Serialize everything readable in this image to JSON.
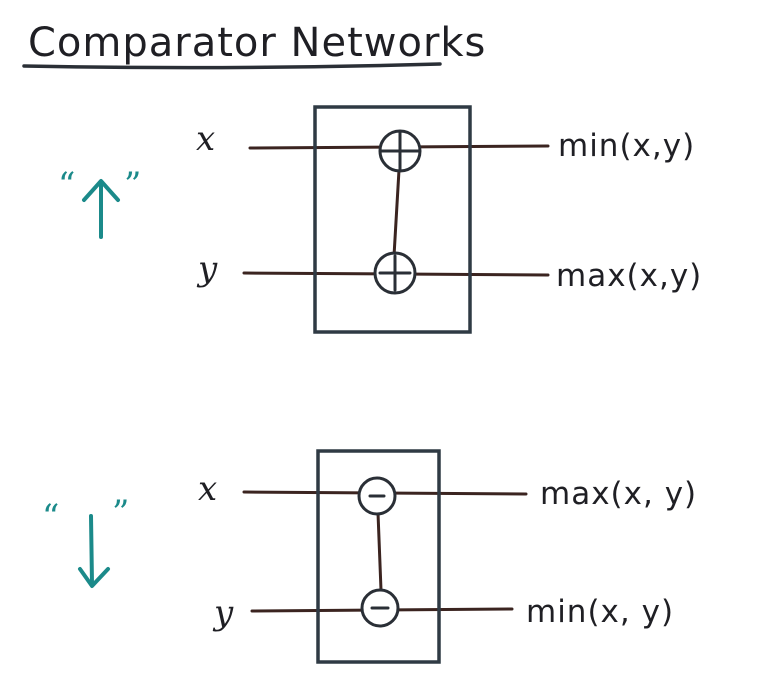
{
  "title": "Comparator Networks",
  "colors": {
    "ink": "#1f1f24",
    "wire": "#3b2420",
    "box": "#2f3a44",
    "teal": "#1b8a8a"
  },
  "up_network": {
    "label_open_quote": "“",
    "label_close_quote": "”",
    "arrow_icon": "arrow-up-icon",
    "input_top": "x",
    "input_bottom": "y",
    "output_top": "min(x,y)",
    "output_bottom": "max(x,y)",
    "node_top_icon": "circled-plus-icon",
    "node_bottom_icon": "circled-plus-icon"
  },
  "down_network": {
    "label_open_quote": "“",
    "label_close_quote": "”",
    "arrow_icon": "arrow-down-icon",
    "input_top": "x",
    "input_bottom": "y",
    "output_top": "max(x, y)",
    "output_bottom": "min(x, y)",
    "node_top_icon": "circled-minus-icon",
    "node_bottom_icon": "circled-minus-icon"
  }
}
